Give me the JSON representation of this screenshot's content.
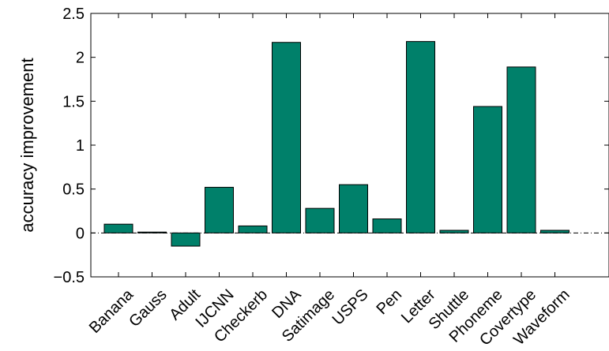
{
  "chart_data": {
    "type": "bar",
    "title": "",
    "xlabel": "",
    "ylabel": "accuracy improvement",
    "ylim": [
      -0.5,
      2.5
    ],
    "yticks": [
      -0.5,
      0,
      0.5,
      1,
      1.5,
      2,
      2.5
    ],
    "ytick_labels": [
      "−0.5",
      "0",
      "0.5",
      "1",
      "1.5",
      "2",
      "2.5"
    ],
    "grid": false,
    "zero_line": "dash-dot",
    "bar_color": "#00806a",
    "categories": [
      "Banana",
      "Gauss",
      "Adult",
      "IJCNN",
      "Checkerb",
      "DNA",
      "Satimage",
      "USPS",
      "Pen",
      "Letter",
      "Shuttle",
      "Phoneme",
      "Covertype",
      "Waveform"
    ],
    "values": [
      0.1,
      0.01,
      -0.15,
      0.52,
      0.08,
      2.17,
      0.28,
      0.55,
      0.16,
      2.18,
      0.03,
      1.44,
      1.89,
      0.03
    ]
  }
}
